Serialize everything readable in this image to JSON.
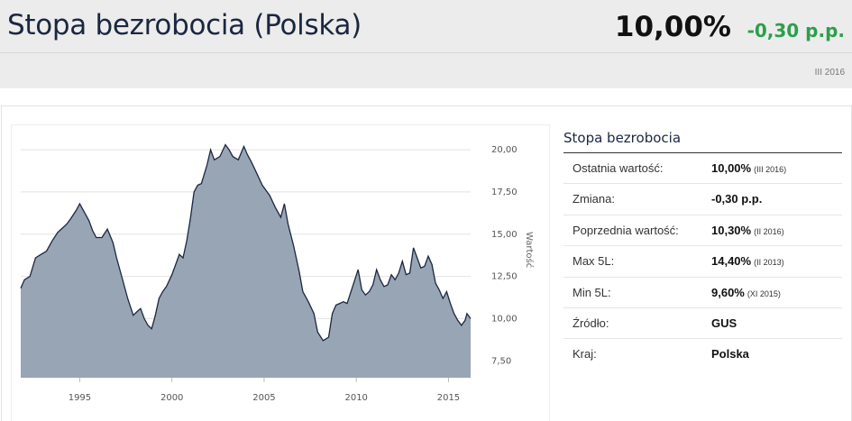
{
  "header": {
    "title": "Stopa bezrobocia (Polska)",
    "value": "10,00%",
    "change": "-0,30 p.p.",
    "date": "III 2016"
  },
  "info": {
    "title": "Stopa bezrobocia",
    "rows": [
      {
        "label": "Ostatnia wartość:",
        "value": "10,00%",
        "note": "(III 2016)"
      },
      {
        "label": "Zmiana:",
        "value": "-0,30 p.p.",
        "note": ""
      },
      {
        "label": "Poprzednia wartość:",
        "value": "10,30%",
        "note": "(II 2016)"
      },
      {
        "label": "Max 5L:",
        "value": "14,40%",
        "note": "(II 2013)"
      },
      {
        "label": "Min 5L:",
        "value": "9,60%",
        "note": "(XI 2015)"
      },
      {
        "label": "Źródło:",
        "value": "GUS",
        "note": ""
      },
      {
        "label": "Kraj:",
        "value": "Polska",
        "note": ""
      }
    ]
  },
  "colors": {
    "area_fill": "#98a5b5",
    "area_line": "#1b2740",
    "change_positive": "#2e9e4a",
    "title": "#1b2740"
  },
  "chart_data": {
    "type": "area",
    "ylabel": "Wartość",
    "xlabel": "",
    "ylim": [
      6.5,
      21.5
    ],
    "xlim": [
      1991.8,
      2016.2
    ],
    "ytick_labels": [
      "7,50",
      "10,00",
      "12,50",
      "15,00",
      "17,50",
      "20,00"
    ],
    "yticks": [
      7.5,
      10,
      12.5,
      15,
      17.5,
      20
    ],
    "xtick_labels": [
      "1995",
      "2000",
      "2005",
      "2010",
      "2015"
    ],
    "xticks": [
      1995,
      2000,
      2005,
      2010,
      2015
    ],
    "grid": true,
    "x": [
      1991.8,
      1992.0,
      1992.3,
      1992.6,
      1992.9,
      1993.2,
      1993.5,
      1993.8,
      1994.0,
      1994.3,
      1994.5,
      1994.8,
      1995.0,
      1995.3,
      1995.5,
      1995.7,
      1995.9,
      1996.2,
      1996.5,
      1996.8,
      1997.0,
      1997.3,
      1997.6,
      1997.9,
      1998.1,
      1998.3,
      1998.5,
      1998.7,
      1998.9,
      1999.1,
      1999.3,
      1999.5,
      1999.7,
      2000.0,
      2000.2,
      2000.4,
      2000.6,
      2000.8,
      2001.0,
      2001.2,
      2001.4,
      2001.6,
      2001.9,
      2002.1,
      2002.3,
      2002.6,
      2002.9,
      2003.1,
      2003.3,
      2003.6,
      2003.9,
      2004.1,
      2004.3,
      2004.6,
      2004.9,
      2005.1,
      2005.3,
      2005.6,
      2005.9,
      2006.1,
      2006.3,
      2006.6,
      2006.9,
      2007.1,
      2007.4,
      2007.7,
      2007.9,
      2008.2,
      2008.5,
      2008.7,
      2008.9,
      2009.1,
      2009.3,
      2009.5,
      2009.8,
      2010.1,
      2010.3,
      2010.5,
      2010.7,
      2010.9,
      2011.1,
      2011.3,
      2011.5,
      2011.7,
      2011.9,
      2012.1,
      2012.3,
      2012.5,
      2012.7,
      2012.9,
      2013.1,
      2013.3,
      2013.5,
      2013.7,
      2013.9,
      2014.1,
      2014.3,
      2014.5,
      2014.7,
      2014.9,
      2015.1,
      2015.3,
      2015.5,
      2015.7,
      2015.9,
      2016.0,
      2016.2
    ],
    "y": [
      11.8,
      12.3,
      12.5,
      13.6,
      13.8,
      14.0,
      14.6,
      15.1,
      15.3,
      15.6,
      15.9,
      16.4,
      16.8,
      16.2,
      15.8,
      15.2,
      14.8,
      14.8,
      15.3,
      14.5,
      13.6,
      12.4,
      11.2,
      10.2,
      10.4,
      10.6,
      10.0,
      9.6,
      9.4,
      10.2,
      11.2,
      11.6,
      11.9,
      12.6,
      13.2,
      13.8,
      13.6,
      14.6,
      15.9,
      17.5,
      17.9,
      18.0,
      19.1,
      20.0,
      19.4,
      19.6,
      20.3,
      20.0,
      19.6,
      19.4,
      20.2,
      19.7,
      19.3,
      18.6,
      17.9,
      17.6,
      17.3,
      16.6,
      16.0,
      16.8,
      15.6,
      14.3,
      12.8,
      11.6,
      11.0,
      10.3,
      9.2,
      8.7,
      8.9,
      10.3,
      10.8,
      10.9,
      11.0,
      10.9,
      11.9,
      12.9,
      11.7,
      11.4,
      11.6,
      12.0,
      12.9,
      12.3,
      11.9,
      12.0,
      12.6,
      12.3,
      12.7,
      13.4,
      12.6,
      12.7,
      14.2,
      13.6,
      13.0,
      13.1,
      13.7,
      13.2,
      12.1,
      11.7,
      11.2,
      11.6,
      10.9,
      10.3,
      9.9,
      9.6,
      9.9,
      10.3,
      10.0
    ]
  }
}
